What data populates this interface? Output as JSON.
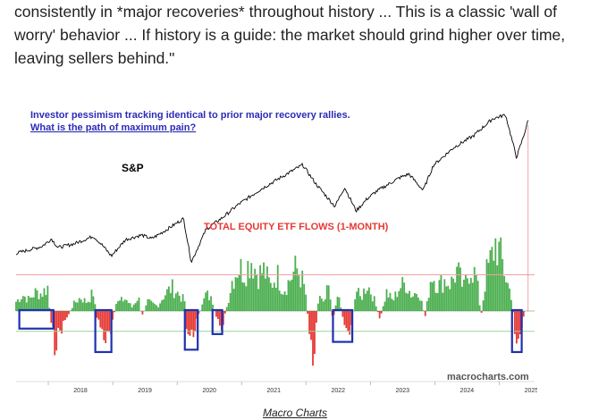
{
  "article": {
    "quote_line1": "consistently in *major recoveries* throughout history ... This is a classic 'wall of",
    "quote_line2": "worry' behavior ... If history is a guide: the market should grind higher over time,",
    "quote_line3": "leaving sellers behind.\""
  },
  "caption": "Macro Charts",
  "chart_data": {
    "type": "line",
    "title": "Investor pessimism tracking identical to prior major recovery rallies.",
    "subtitle": "What is the path of maximum pain?",
    "watermark": "macrocharts.com",
    "x": [
      "2018",
      "2019",
      "2020",
      "2021",
      "2022",
      "2023",
      "2024",
      "2025"
    ],
    "series": [
      {
        "name": "S&P",
        "type": "line",
        "color": "#000000",
        "points": [
          [
            2017.5,
            2470
          ],
          [
            2017.9,
            2650
          ],
          [
            2018.05,
            2850
          ],
          [
            2018.15,
            2620
          ],
          [
            2018.4,
            2720
          ],
          [
            2018.7,
            2920
          ],
          [
            2018.83,
            2700
          ],
          [
            2018.98,
            2400
          ],
          [
            2019.2,
            2830
          ],
          [
            2019.45,
            2950
          ],
          [
            2019.6,
            2850
          ],
          [
            2019.8,
            3050
          ],
          [
            2020.1,
            3380
          ],
          [
            2020.22,
            2240
          ],
          [
            2020.45,
            3100
          ],
          [
            2020.7,
            3400
          ],
          [
            2020.95,
            3750
          ],
          [
            2021.3,
            4150
          ],
          [
            2021.6,
            4450
          ],
          [
            2021.95,
            4790
          ],
          [
            2022.15,
            4300
          ],
          [
            2022.45,
            3700
          ],
          [
            2022.6,
            4200
          ],
          [
            2022.78,
            3580
          ],
          [
            2022.95,
            3900
          ],
          [
            2023.1,
            4100
          ],
          [
            2023.45,
            4450
          ],
          [
            2023.6,
            4550
          ],
          [
            2023.82,
            4120
          ],
          [
            2023.98,
            4780
          ],
          [
            2024.3,
            5250
          ],
          [
            2024.6,
            5550
          ],
          [
            2024.9,
            6000
          ],
          [
            2025.1,
            6100
          ],
          [
            2025.27,
            4980
          ],
          [
            2025.38,
            5550
          ],
          [
            2025.45,
            5950
          ]
        ]
      },
      {
        "name": "TOTAL EQUITY ETF FLOWS (1-MONTH)",
        "type": "area",
        "positive_color": "#4caf50",
        "negative_color": "#e53935",
        "points": [
          [
            2017.5,
            15
          ],
          [
            2017.6,
            26
          ],
          [
            2017.7,
            18
          ],
          [
            2017.8,
            30
          ],
          [
            2017.9,
            28
          ],
          [
            2018.0,
            40
          ],
          [
            2018.03,
            -18
          ],
          [
            2018.1,
            -52
          ],
          [
            2018.2,
            -28
          ],
          [
            2018.3,
            -8
          ],
          [
            2018.4,
            12
          ],
          [
            2018.5,
            22
          ],
          [
            2018.6,
            14
          ],
          [
            2018.7,
            30
          ],
          [
            2018.75,
            -10
          ],
          [
            2018.8,
            -22
          ],
          [
            2018.9,
            -48
          ],
          [
            2018.97,
            -40
          ],
          [
            2019.05,
            12
          ],
          [
            2019.2,
            20
          ],
          [
            2019.3,
            6
          ],
          [
            2019.4,
            24
          ],
          [
            2019.45,
            -10
          ],
          [
            2019.55,
            15
          ],
          [
            2019.7,
            8
          ],
          [
            2019.8,
            26
          ],
          [
            2019.92,
            38
          ],
          [
            2020.0,
            30
          ],
          [
            2020.12,
            16
          ],
          [
            2020.15,
            -30
          ],
          [
            2020.22,
            -45
          ],
          [
            2020.3,
            -18
          ],
          [
            2020.4,
            12
          ],
          [
            2020.45,
            28
          ],
          [
            2020.55,
            16
          ],
          [
            2020.62,
            -20
          ],
          [
            2020.7,
            -25
          ],
          [
            2020.78,
            10
          ],
          [
            2020.85,
            48
          ],
          [
            2020.95,
            72
          ],
          [
            2021.05,
            62
          ],
          [
            2021.15,
            85
          ],
          [
            2021.25,
            58
          ],
          [
            2021.35,
            66
          ],
          [
            2021.45,
            40
          ],
          [
            2021.55,
            60
          ],
          [
            2021.65,
            34
          ],
          [
            2021.75,
            50
          ],
          [
            2021.85,
            70
          ],
          [
            2021.95,
            48
          ],
          [
            2022.0,
            26
          ],
          [
            2022.05,
            -30
          ],
          [
            2022.12,
            -70
          ],
          [
            2022.2,
            24
          ],
          [
            2022.28,
            10
          ],
          [
            2022.35,
            40
          ],
          [
            2022.42,
            -18
          ],
          [
            2022.5,
            28
          ],
          [
            2022.58,
            -12
          ],
          [
            2022.65,
            -35
          ],
          [
            2022.7,
            -25
          ],
          [
            2022.78,
            34
          ],
          [
            2022.85,
            20
          ],
          [
            2022.95,
            44
          ],
          [
            2023.05,
            22
          ],
          [
            2023.15,
            -15
          ],
          [
            2023.25,
            30
          ],
          [
            2023.35,
            16
          ],
          [
            2023.45,
            38
          ],
          [
            2023.55,
            45
          ],
          [
            2023.65,
            24
          ],
          [
            2023.75,
            36
          ],
          [
            2023.85,
            -10
          ],
          [
            2023.95,
            62
          ],
          [
            2024.05,
            40
          ],
          [
            2024.15,
            50
          ],
          [
            2024.25,
            44
          ],
          [
            2024.35,
            66
          ],
          [
            2024.45,
            36
          ],
          [
            2024.55,
            72
          ],
          [
            2024.65,
            54
          ],
          [
            2024.72,
            -8
          ],
          [
            2024.8,
            60
          ],
          [
            2024.88,
            85
          ],
          [
            2024.95,
            112
          ],
          [
            2025.05,
            78
          ],
          [
            2025.12,
            48
          ],
          [
            2025.2,
            22
          ],
          [
            2025.23,
            -22
          ],
          [
            2025.28,
            -48
          ],
          [
            2025.33,
            -35
          ],
          [
            2025.38,
            -10
          ]
        ]
      }
    ],
    "labels": {
      "sp": "S&P",
      "flows": "TOTAL EQUITY ETF FLOWS (1-MONTH)"
    },
    "colors": {
      "title_blue": "#2b2bb8",
      "flows_label_red": "#e53935",
      "highlight_box_blue": "#2030b0",
      "reference_line_pink": "#f2a0a0",
      "reference_line_green": "#9bd49b"
    },
    "highlight_boxes": [
      [
        2017.55,
        2018.08
      ],
      [
        2018.73,
        2018.98
      ],
      [
        2020.12,
        2020.32
      ],
      [
        2020.55,
        2020.7
      ],
      [
        2022.42,
        2022.72
      ],
      [
        2025.2,
        2025.35
      ]
    ],
    "reference_lines": [
      {
        "y": 54,
        "color": "pink"
      },
      {
        "y": -30,
        "color": "green"
      }
    ],
    "xlim": [
      2017.5,
      2025.55
    ],
    "sp_ylim": [
      2200,
      6300
    ],
    "flows_ylim": [
      -100,
      160
    ],
    "grid": false
  }
}
